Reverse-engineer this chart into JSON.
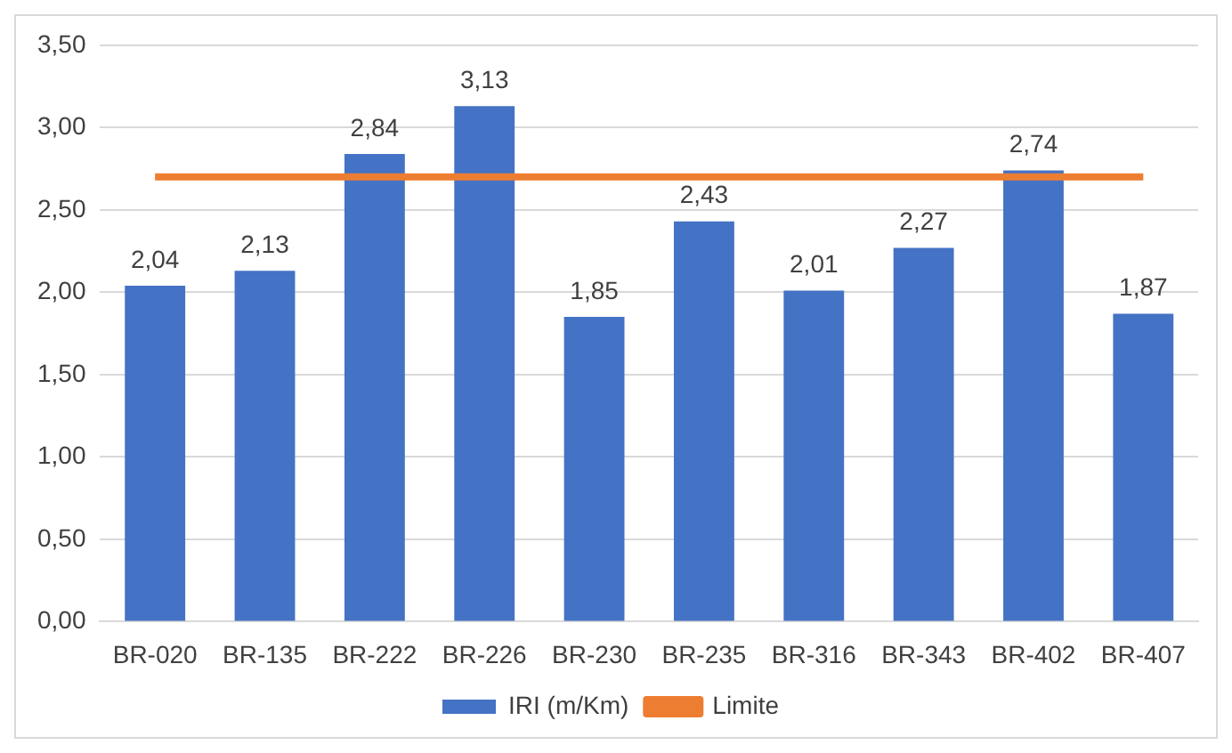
{
  "chart_data": {
    "type": "bar",
    "categories": [
      "BR-020",
      "BR-135",
      "BR-222",
      "BR-226",
      "BR-230",
      "BR-235",
      "BR-316",
      "BR-343",
      "BR-402",
      "BR-407"
    ],
    "series": [
      {
        "name": "IRI (m/Km)",
        "color": "#4472c4",
        "values": [
          2.04,
          2.13,
          2.84,
          3.13,
          1.85,
          2.43,
          2.01,
          2.27,
          2.74,
          1.87
        ],
        "value_labels": [
          "2,04",
          "2,13",
          "2,84",
          "3,13",
          "1,85",
          "2,43",
          "2,01",
          "2,27",
          "2,74",
          "1,87"
        ]
      },
      {
        "name": "Limite",
        "type": "line",
        "color": "#ed7d31",
        "values": [
          2.7,
          2.7,
          2.7,
          2.7,
          2.7,
          2.7,
          2.7,
          2.7,
          2.7,
          2.7
        ]
      }
    ],
    "ylim": [
      0,
      3.5
    ],
    "yticks": [
      {
        "value": 0,
        "label": "0,00"
      },
      {
        "value": 0.5,
        "label": "0,50"
      },
      {
        "value": 1,
        "label": "1,00"
      },
      {
        "value": 1.5,
        "label": "1,50"
      },
      {
        "value": 2,
        "label": "2,00"
      },
      {
        "value": 2.5,
        "label": "2,50"
      },
      {
        "value": 3,
        "label": "3,00"
      },
      {
        "value": 3.5,
        "label": "3,50"
      }
    ],
    "grid": "y",
    "legend": "bottom",
    "marker": "none"
  }
}
